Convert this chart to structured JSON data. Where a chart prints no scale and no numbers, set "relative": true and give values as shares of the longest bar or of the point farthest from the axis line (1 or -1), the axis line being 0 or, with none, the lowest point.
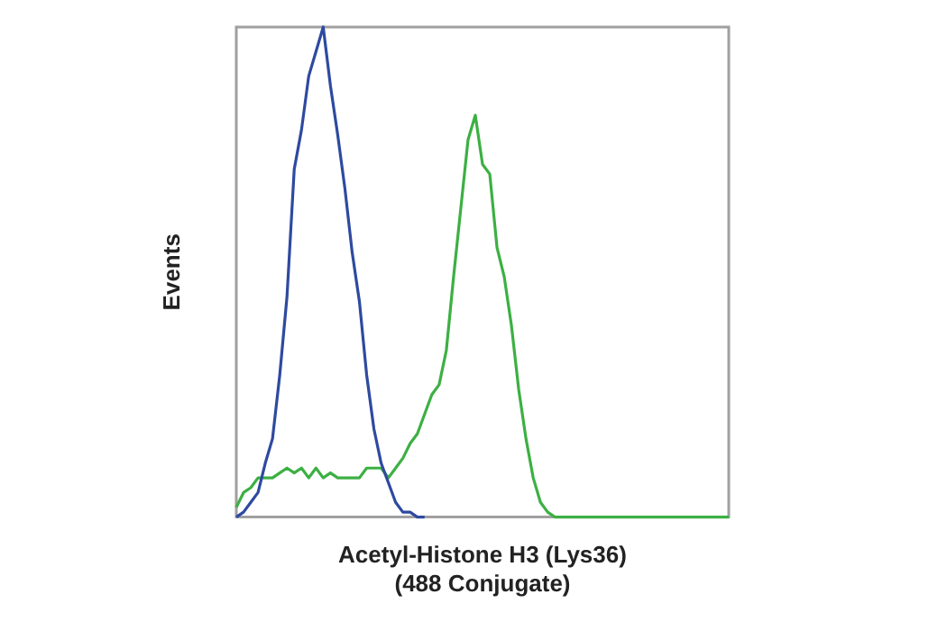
{
  "chart_data": {
    "type": "line",
    "relative": true,
    "grid": false,
    "xlabel": "Acetyl-Histone H3 (Lys36)\n(488 Conjugate)",
    "ylabel": "Events",
    "categories": [
      null,
      null,
      null,
      null,
      null,
      null,
      null,
      null,
      null,
      null,
      null,
      null,
      null,
      null,
      null,
      null,
      null,
      null,
      null,
      null,
      null,
      null,
      null,
      null,
      null,
      null,
      null,
      null,
      null,
      null,
      null,
      null,
      null,
      null,
      null,
      null,
      null,
      null,
      null,
      null,
      null,
      null,
      null,
      null,
      null,
      null,
      null,
      null,
      null,
      null,
      null,
      null,
      null,
      null,
      null,
      null,
      null,
      null,
      null,
      null,
      null,
      null,
      null,
      null,
      null,
      null,
      null,
      null,
      null
    ],
    "series": [
      {
        "color": "#2e4aa0",
        "values": [
          0,
          0.01,
          0.03,
          0.05,
          0.11,
          0.16,
          0.29,
          0.45,
          0.71,
          0.79,
          0.9,
          0.95,
          1,
          0.88,
          0.78,
          0.67,
          0.54,
          0.44,
          0.29,
          0.18,
          0.11,
          0.07,
          0.03,
          0.01,
          0.01,
          0,
          0,
          null,
          null,
          null,
          null,
          null,
          null,
          null,
          null,
          null,
          null,
          null,
          null,
          null,
          null,
          null,
          null,
          null,
          null,
          null,
          null,
          null,
          null,
          null,
          null,
          null,
          null,
          null,
          null,
          null,
          null,
          null,
          null,
          null,
          null,
          null,
          null,
          null,
          null,
          null,
          null,
          null,
          null
        ]
      },
      {
        "color": "#3cb043",
        "values": [
          0.02,
          0.05,
          0.06,
          0.08,
          0.08,
          0.08,
          0.09,
          0.1,
          0.09,
          0.1,
          0.08,
          0.1,
          0.08,
          0.09,
          0.08,
          0.08,
          0.08,
          0.08,
          0.1,
          0.1,
          0.1,
          0.08,
          0.1,
          0.12,
          0.15,
          0.17,
          0.21,
          0.25,
          0.27,
          0.34,
          0.49,
          0.63,
          0.77,
          0.82,
          0.72,
          0.7,
          0.55,
          0.49,
          0.39,
          0.26,
          0.16,
          0.08,
          0.03,
          0.01,
          0,
          0,
          0,
          0,
          0,
          0,
          0,
          0,
          0,
          0,
          0,
          0,
          0,
          0,
          0,
          0,
          0,
          0,
          0,
          0,
          0,
          0,
          0,
          0,
          0
        ]
      }
    ]
  }
}
